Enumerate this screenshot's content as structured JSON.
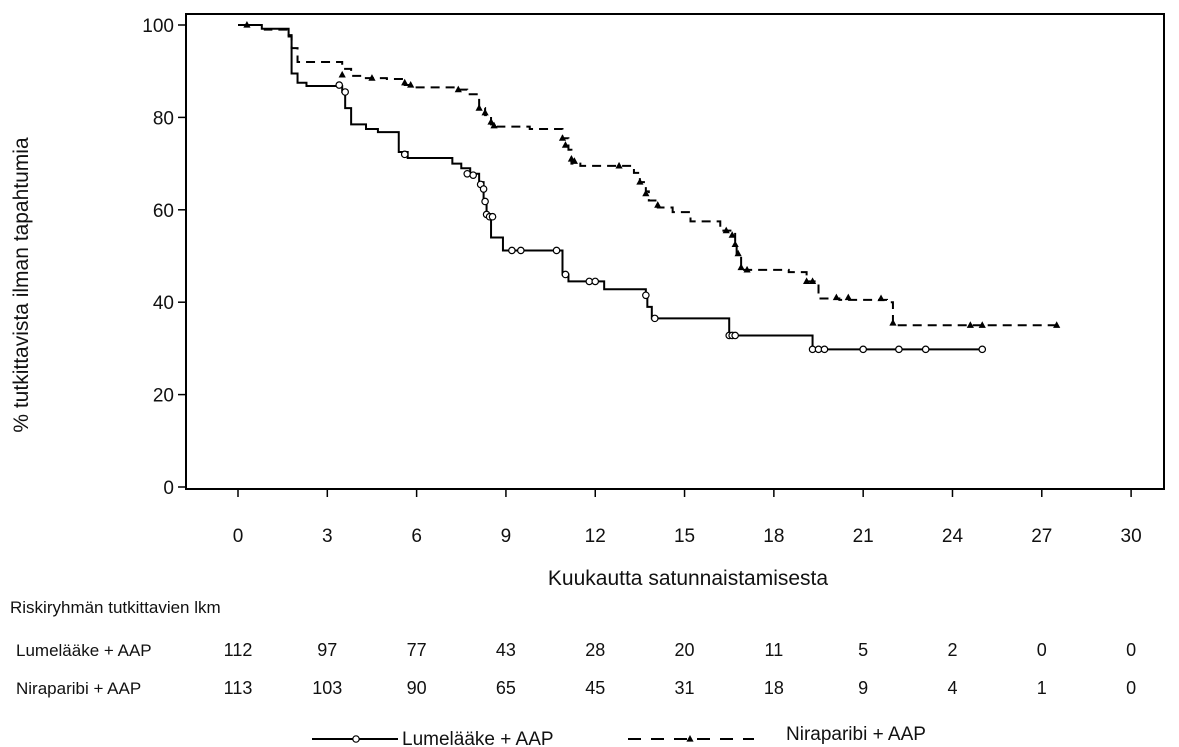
{
  "chart_data": {
    "type": "line",
    "subtype": "kaplan-meier",
    "xlabel": "Kuukautta satunnaistamisesta",
    "ylabel": "% tutkittavista ilman tapahtumia",
    "xlim": [
      0,
      30
    ],
    "ylim": [
      0,
      100
    ],
    "xticks": [
      "0",
      "3",
      "6",
      "9",
      "12",
      "15",
      "18",
      "21",
      "24",
      "27",
      "30"
    ],
    "yticks": [
      "0",
      "20",
      "40",
      "60",
      "80",
      "100"
    ],
    "grid": false,
    "legend_position": "bottom",
    "series": [
      {
        "name": "Lumelääke + AAP",
        "line_style": "solid",
        "marker": "open-circle",
        "color": "#000000",
        "steps": [
          [
            0,
            100
          ],
          [
            0.8,
            99.2
          ],
          [
            1.7,
            97.8
          ],
          [
            1.8,
            89.5
          ],
          [
            2.0,
            87.5
          ],
          [
            2.3,
            86.8
          ],
          [
            3.5,
            85.5
          ],
          [
            3.6,
            82.0
          ],
          [
            3.8,
            78.5
          ],
          [
            4.3,
            77.5
          ],
          [
            4.7,
            76.8
          ],
          [
            5.4,
            72.5
          ],
          [
            5.7,
            71.2
          ],
          [
            7.2,
            70.0
          ],
          [
            7.5,
            69.0
          ],
          [
            7.8,
            67.8
          ],
          [
            8.1,
            66.0
          ],
          [
            8.25,
            62.0
          ],
          [
            8.35,
            59.0
          ],
          [
            8.5,
            54.0
          ],
          [
            8.9,
            51.2
          ],
          [
            10.9,
            46.0
          ],
          [
            11.1,
            44.5
          ],
          [
            12.3,
            42.8
          ],
          [
            13.7,
            41.5
          ],
          [
            13.75,
            39.0
          ],
          [
            13.9,
            36.5
          ],
          [
            16.5,
            32.8
          ],
          [
            19.3,
            29.8
          ],
          [
            25.0,
            29.8
          ]
        ],
        "censored": [
          [
            3.4,
            87.0
          ],
          [
            3.6,
            85.5
          ],
          [
            5.6,
            72.0
          ],
          [
            7.7,
            67.8
          ],
          [
            7.9,
            67.5
          ],
          [
            8.15,
            65.5
          ],
          [
            8.25,
            64.5
          ],
          [
            8.3,
            61.8
          ],
          [
            8.35,
            59.0
          ],
          [
            8.45,
            58.5
          ],
          [
            8.55,
            58.5
          ],
          [
            9.2,
            51.2
          ],
          [
            9.5,
            51.2
          ],
          [
            10.7,
            51.2
          ],
          [
            11.0,
            46.0
          ],
          [
            11.8,
            44.5
          ],
          [
            12.0,
            44.5
          ],
          [
            13.7,
            41.5
          ],
          [
            14.0,
            36.5
          ],
          [
            16.5,
            32.8
          ],
          [
            16.6,
            32.8
          ],
          [
            16.7,
            32.8
          ],
          [
            19.3,
            29.8
          ],
          [
            19.5,
            29.8
          ],
          [
            19.7,
            29.8
          ],
          [
            21.0,
            29.8
          ],
          [
            22.2,
            29.8
          ],
          [
            23.1,
            29.8
          ],
          [
            25.0,
            29.8
          ]
        ]
      },
      {
        "name": "Niraparibi + AAP",
        "line_style": "dashed",
        "marker": "filled-triangle",
        "color": "#000000",
        "steps": [
          [
            0,
            100
          ],
          [
            0.5,
            100
          ],
          [
            0.9,
            99.0
          ],
          [
            1.7,
            97.5
          ],
          [
            1.8,
            95.0
          ],
          [
            2.0,
            92.0
          ],
          [
            3.5,
            90.5
          ],
          [
            3.8,
            89.0
          ],
          [
            4.2,
            88.5
          ],
          [
            5.0,
            88.3
          ],
          [
            5.6,
            87.0
          ],
          [
            6.0,
            86.5
          ],
          [
            7.3,
            86.0
          ],
          [
            7.7,
            85.0
          ],
          [
            8.1,
            82.0
          ],
          [
            8.3,
            80.5
          ],
          [
            8.5,
            78.5
          ],
          [
            8.7,
            78.0
          ],
          [
            9.8,
            77.5
          ],
          [
            10.9,
            75.5
          ],
          [
            11.1,
            73.0
          ],
          [
            11.2,
            70.0
          ],
          [
            11.5,
            69.5
          ],
          [
            13.3,
            68.0
          ],
          [
            13.5,
            66.0
          ],
          [
            13.7,
            64.0
          ],
          [
            13.8,
            62.0
          ],
          [
            14.1,
            60.5
          ],
          [
            14.6,
            59.5
          ],
          [
            15.2,
            57.5
          ],
          [
            16.2,
            55.5
          ],
          [
            16.7,
            52.5
          ],
          [
            16.75,
            50.0
          ],
          [
            16.9,
            47.0
          ],
          [
            18.5,
            46.5
          ],
          [
            19.1,
            44.5
          ],
          [
            19.5,
            40.8
          ],
          [
            20.2,
            40.5
          ],
          [
            21.8,
            40.0
          ],
          [
            22.0,
            35.0
          ],
          [
            27.5,
            35.0
          ]
        ],
        "censored": [
          [
            0.3,
            100.0
          ],
          [
            3.5,
            89.2
          ],
          [
            4.5,
            88.5
          ],
          [
            5.6,
            87.5
          ],
          [
            5.8,
            87.0
          ],
          [
            7.4,
            86.0
          ],
          [
            8.1,
            82.0
          ],
          [
            8.3,
            81.0
          ],
          [
            8.5,
            79.0
          ],
          [
            8.6,
            78.2
          ],
          [
            10.9,
            75.5
          ],
          [
            11.0,
            74.0
          ],
          [
            11.2,
            71.0
          ],
          [
            11.3,
            70.5
          ],
          [
            12.8,
            69.5
          ],
          [
            13.5,
            66.0
          ],
          [
            13.7,
            63.5
          ],
          [
            14.1,
            61.0
          ],
          [
            16.4,
            55.5
          ],
          [
            16.6,
            54.5
          ],
          [
            16.7,
            52.5
          ],
          [
            16.8,
            50.5
          ],
          [
            16.9,
            47.5
          ],
          [
            17.1,
            47.0
          ],
          [
            19.1,
            44.5
          ],
          [
            19.3,
            44.5
          ],
          [
            20.1,
            41.0
          ],
          [
            20.5,
            41.0
          ],
          [
            21.6,
            40.8
          ],
          [
            22.0,
            35.5
          ],
          [
            24.6,
            35.0
          ],
          [
            25.0,
            35.0
          ],
          [
            27.5,
            35.0
          ]
        ]
      }
    ]
  },
  "risk_table": {
    "title": "Riskiryhmän tutkittavien lkm",
    "columns": [
      "0",
      "3",
      "6",
      "9",
      "12",
      "15",
      "18",
      "21",
      "24",
      "27",
      "30"
    ],
    "rows": [
      {
        "label": "Lumelääke + AAP",
        "values": [
          "112",
          "97",
          "77",
          "43",
          "28",
          "20",
          "11",
          "5",
          "2",
          "0",
          "0"
        ]
      },
      {
        "label": "Niraparibi + AAP",
        "values": [
          "113",
          "103",
          "90",
          "65",
          "45",
          "31",
          "18",
          "9",
          "4",
          "1",
          "0"
        ]
      }
    ]
  },
  "legend": {
    "items": [
      {
        "label": "Lumelääke + AAP",
        "line_style": "solid",
        "marker": "open-circle"
      },
      {
        "label": "Niraparibi + AAP",
        "line_style": "dashed",
        "marker": "filled-triangle"
      }
    ]
  }
}
